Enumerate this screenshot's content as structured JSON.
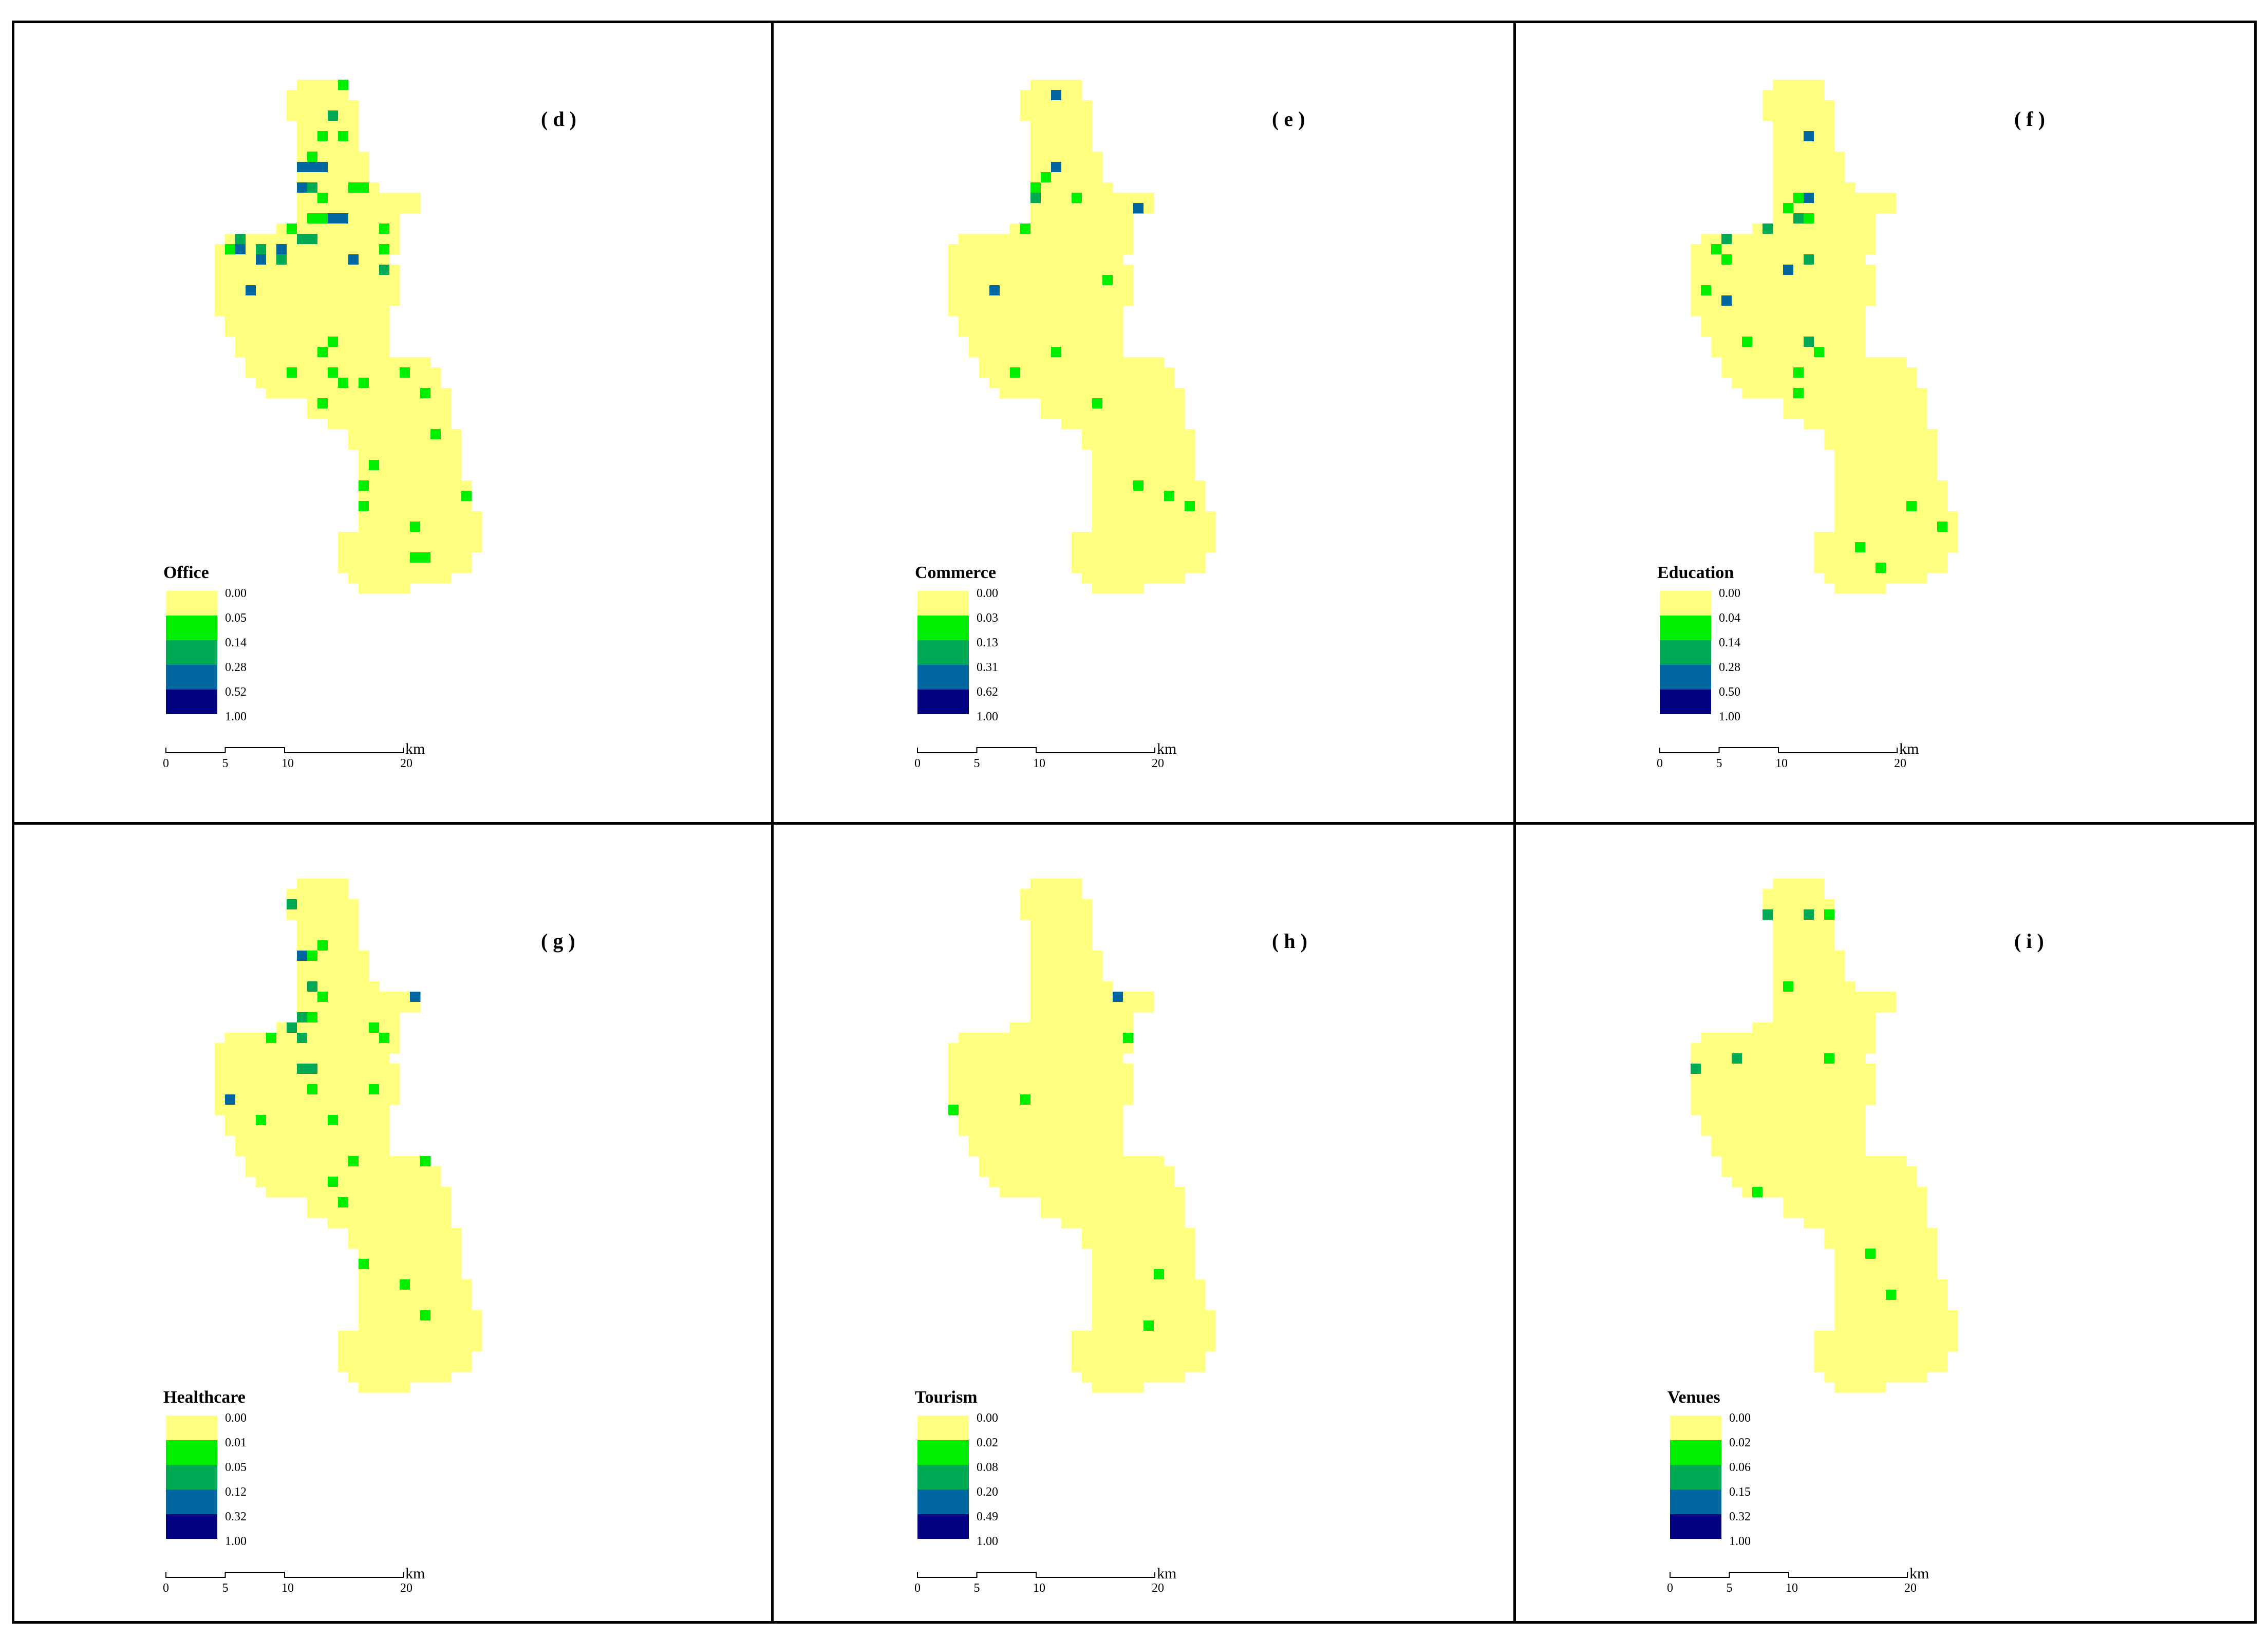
{
  "colors": {
    "c0": "#ffff80",
    "c1": "#00ee00",
    "c2": "#00aa55",
    "c3": "#0066a0",
    "c4": "#000080",
    "border": "#000000"
  },
  "scale_bar": {
    "ticks": [
      "0",
      "5",
      "10",
      "20"
    ],
    "unit": "km"
  },
  "panels": [
    {
      "label": "( d )",
      "title": "Office",
      "breaks": [
        "0.00",
        "0.05",
        "0.14",
        "0.28",
        "0.52",
        "1.00"
      ],
      "shape": "north",
      "intensity": 1.0
    },
    {
      "label": "( e )",
      "title": "Commerce",
      "breaks": [
        "0.00",
        "0.03",
        "0.13",
        "0.31",
        "0.62",
        "1.00"
      ],
      "shape": "south",
      "intensity": 0.35
    },
    {
      "label": "( f )",
      "title": "Education",
      "breaks": [
        "0.00",
        "0.04",
        "0.14",
        "0.28",
        "0.50",
        "1.00"
      ],
      "shape": "south",
      "intensity": 0.55
    },
    {
      "label": "( g )",
      "title": "Healthcare",
      "breaks": [
        "0.00",
        "0.01",
        "0.05",
        "0.12",
        "0.32",
        "1.00"
      ],
      "shape": "north",
      "intensity": 0.7
    },
    {
      "label": "( h )",
      "title": "Tourism",
      "breaks": [
        "0.00",
        "0.02",
        "0.08",
        "0.20",
        "0.49",
        "1.00"
      ],
      "shape": "south",
      "intensity": 0.3
    },
    {
      "label": "( i )",
      "title": "Venues",
      "breaks": [
        "0.00",
        "0.02",
        "0.06",
        "0.15",
        "0.32",
        "1.00"
      ],
      "shape": "south",
      "intensity": 0.25
    }
  ]
}
